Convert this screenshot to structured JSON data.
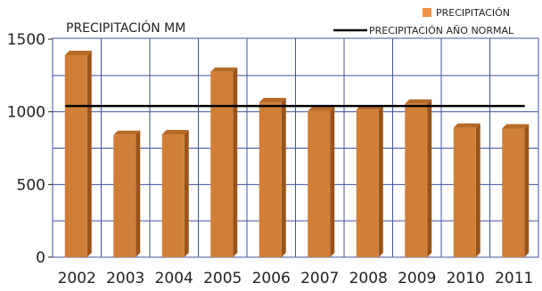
{
  "chart_data": {
    "type": "bar",
    "title": "",
    "xlabel": "",
    "ylabel": "PRECIPITACIÓN  MM",
    "categories": [
      "2002",
      "2003",
      "2004",
      "2005",
      "2006",
      "2007",
      "2008",
      "2009",
      "2010",
      "2011"
    ],
    "series": [
      {
        "name": "PRECIPITACIÓN",
        "values": [
          1390,
          840,
          845,
          1275,
          1065,
          1005,
          1015,
          1055,
          890,
          885
        ],
        "color": "#d07f38"
      }
    ],
    "reference_line": {
      "name": "PRECIPITACIÓN AÑO NORMAL",
      "value": 1040,
      "color": "#000000"
    },
    "ylim": [
      0,
      1500
    ],
    "yticks": [
      0,
      500,
      1000,
      1500
    ],
    "grid": true,
    "legend": "top-right",
    "grid_color": "#4050a0"
  }
}
